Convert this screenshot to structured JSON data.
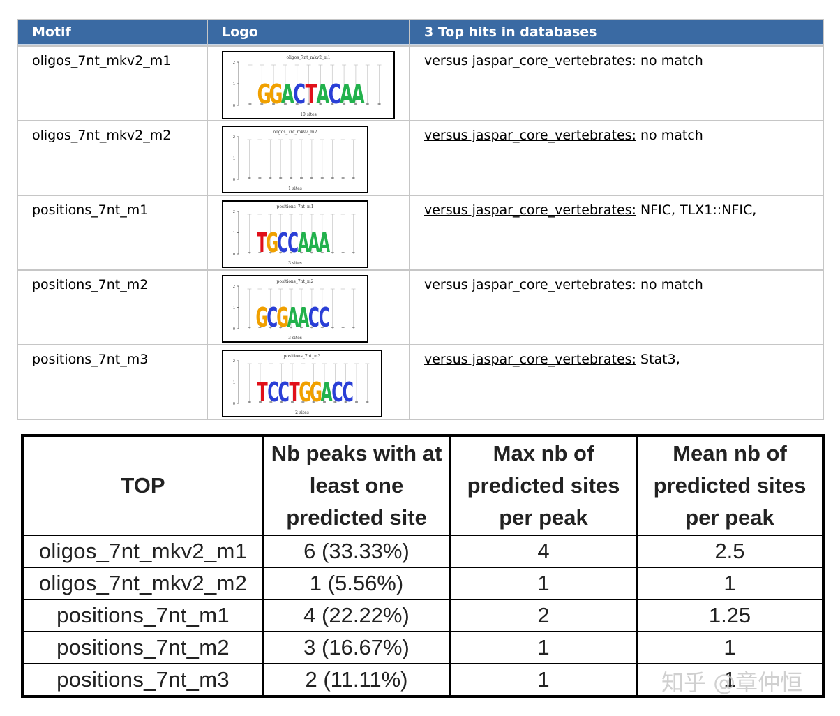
{
  "motif_table": {
    "headers": {
      "motif": "Motif",
      "logo": "Logo",
      "hits": "3 Top hits in databases"
    },
    "rows": [
      {
        "motif": "oligos_7nt_mkv2_m1",
        "logo_title": "oligos_7nt_mkv2_m1",
        "logo_sites": "10 sites",
        "logo_sequence": "GGACTACAA",
        "hit_link": "versus jaspar_core_vertebrates:",
        "hit_result": " no match"
      },
      {
        "motif": "oligos_7nt_mkv2_m2",
        "logo_title": "oligos_7nt_mkv2_m2",
        "logo_sites": "1 sites",
        "logo_sequence": "",
        "hit_link": "versus jaspar_core_vertebrates:",
        "hit_result": " no match"
      },
      {
        "motif": "positions_7nt_m1",
        "logo_title": "positions_7nt_m1",
        "logo_sites": "3 sites",
        "logo_sequence": "TGCCAAA",
        "hit_link": "versus jaspar_core_vertebrates:",
        "hit_result": " NFIC, TLX1::NFIC,"
      },
      {
        "motif": "positions_7nt_m2",
        "logo_title": "positions_7nt_m2",
        "logo_sites": "3 sites",
        "logo_sequence": "GCGAACC",
        "hit_link": "versus jaspar_core_vertebrates:",
        "hit_result": " no match"
      },
      {
        "motif": "positions_7nt_m3",
        "logo_title": "positions_7nt_m3",
        "logo_sites": "2 sites",
        "logo_sequence": "TCCTGGACC",
        "hit_link": "versus jaspar_core_vertebrates:",
        "hit_result": " Stat3,"
      }
    ]
  },
  "summary_table": {
    "headers": {
      "top": "TOP",
      "nb_peaks": "Nb peaks with at least one predicted site",
      "max_sites": "Max nb of predicted sites per peak",
      "mean_sites": "Mean nb of predicted sites per peak"
    },
    "rows": [
      {
        "name": "oligos_7nt_mkv2_m1",
        "nb_peaks": "6 (33.33%)",
        "max": "4",
        "mean": "2.5"
      },
      {
        "name": "oligos_7nt_mkv2_m2",
        "nb_peaks": "1 (5.56%)",
        "max": "1",
        "mean": "1"
      },
      {
        "name": "positions_7nt_m1",
        "nb_peaks": "4 (22.22%)",
        "max": "2",
        "mean": "1.25"
      },
      {
        "name": "positions_7nt_m2",
        "nb_peaks": "3 (16.67%)",
        "max": "1",
        "mean": "1"
      },
      {
        "name": "positions_7nt_m3",
        "nb_peaks": "2 (11.11%)",
        "max": "1",
        "mean": "1"
      }
    ]
  },
  "watermark": "知乎 @章仲恒",
  "colors": {
    "header_bg": "#3a6aa3",
    "base_A": "#22b14c",
    "base_C": "#2a3fd6",
    "base_G": "#f0a000",
    "base_T": "#e0101a"
  }
}
